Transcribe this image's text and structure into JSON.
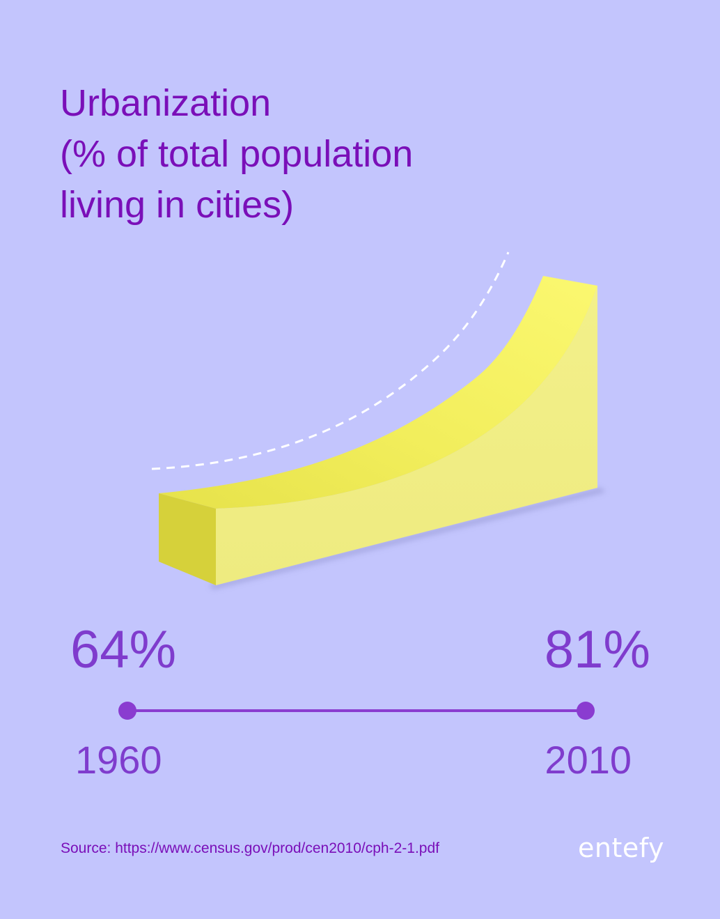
{
  "title_lines": [
    "Urbanization",
    "(% of total population",
    "living in cities)"
  ],
  "chart_data": {
    "type": "area",
    "title": "Urbanization (% of total population living in cities)",
    "x": [
      1960,
      2010
    ],
    "values": [
      64,
      81
    ],
    "x_labels": [
      "1960",
      "2010"
    ],
    "value_labels": [
      "64%",
      "81%"
    ],
    "unit": "%",
    "grid": false
  },
  "source": "Source: https://www.census.gov/prod/cen2010/cph-2-1.pdf",
  "logo_text": "entefy",
  "colors": {
    "background": "#c3c5fd",
    "title": "#7a0fb8",
    "accent": "#7f3ccd",
    "bar_top": "#f0ec6a",
    "bar_front": "#f1ee86",
    "bar_end": "#d4cf38",
    "dashed_line": "#ffffff"
  }
}
